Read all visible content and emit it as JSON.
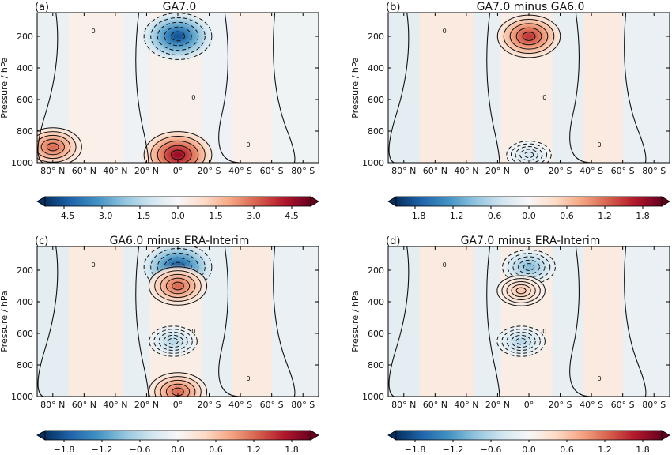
{
  "chart_data": [
    {
      "type": "heatmap",
      "panel_label": "(a)",
      "title": "GA7.0",
      "ylabel": "Pressure / hPa",
      "ylim": [
        1000,
        50
      ],
      "y_ticks": [
        "200",
        "400",
        "600",
        "800",
        "1000"
      ],
      "x_ticks": [
        "80° N",
        "60° N",
        "40° N",
        "20° N",
        "0°",
        "20° S",
        "40° S",
        "60° S",
        "80° S"
      ],
      "colorbar": {
        "range": [
          -5.25,
          5.25
        ],
        "ticks": [
          "−4.5",
          "−3.0",
          "−1.5",
          "0.0",
          "1.5",
          "3.0",
          "4.5"
        ],
        "extend": "both"
      },
      "contour_label": "0",
      "features": [
        {
          "name": "upper-level negative anomaly",
          "lat": 0,
          "pressure": 200,
          "sign": "negative",
          "peak": -4.5
        },
        {
          "name": "near-surface positive anomaly",
          "lat": 0,
          "pressure": 950,
          "sign": "positive",
          "peak": 4.5
        },
        {
          "name": "high-latitude south positive anomaly",
          "lat": 80,
          "pressure": 900,
          "sign": "positive",
          "peak": 3.0
        }
      ]
    },
    {
      "type": "heatmap",
      "panel_label": "(b)",
      "title": "GA7.0 minus GA6.0",
      "ylabel": "Pressure / hPa",
      "ylim": [
        1000,
        50
      ],
      "y_ticks": [
        "200",
        "400",
        "600",
        "800",
        "1000"
      ],
      "x_ticks": [
        "80° N",
        "60° N",
        "40° N",
        "20° N",
        "0°",
        "20° S",
        "40° S",
        "60° S",
        "80° S"
      ],
      "colorbar": {
        "range": [
          -2.1,
          2.1
        ],
        "ticks": [
          "−1.8",
          "−1.2",
          "−0.6",
          "0.0",
          "0.6",
          "1.2",
          "1.8"
        ],
        "extend": "both"
      },
      "contour_label": "0",
      "features": [
        {
          "name": "upper-level positive anomaly",
          "lat": 0,
          "pressure": 200,
          "sign": "positive",
          "peak": 1.5
        },
        {
          "name": "near-surface negative anomaly",
          "lat": 0,
          "pressure": 950,
          "sign": "negative",
          "peak": -0.4
        }
      ]
    },
    {
      "type": "heatmap",
      "panel_label": "(c)",
      "title": "GA6.0 minus ERA-Interim",
      "ylabel": "Pressure / hPa",
      "ylim": [
        1000,
        50
      ],
      "y_ticks": [
        "200",
        "400",
        "600",
        "800",
        "1000"
      ],
      "x_ticks": [
        "80° N",
        "60° N",
        "40° N",
        "20° N",
        "0°",
        "20° S",
        "40° S",
        "60° S",
        "80° S"
      ],
      "colorbar": {
        "range": [
          -2.1,
          2.1
        ],
        "ticks": [
          "−1.8",
          "−1.2",
          "−0.6",
          "0.0",
          "0.6",
          "1.2",
          "1.8"
        ],
        "extend": "both"
      },
      "contour_label": "0",
      "features": [
        {
          "name": "upper-level negative anomaly",
          "lat": 0,
          "pressure": 180,
          "sign": "negative",
          "peak": -1.8
        },
        {
          "name": "upper-level positive anomaly",
          "lat": 0,
          "pressure": 300,
          "sign": "positive",
          "peak": 1.2
        },
        {
          "name": "mid-level negative anomaly",
          "lat": 3,
          "pressure": 650,
          "sign": "negative",
          "peak": -0.6
        },
        {
          "name": "near-surface positive anomaly",
          "lat": 0,
          "pressure": 970,
          "sign": "positive",
          "peak": 1.2
        }
      ]
    },
    {
      "type": "heatmap",
      "panel_label": "(d)",
      "title": "GA7.0 minus ERA-Interim",
      "ylabel": "Pressure / hPa",
      "ylim": [
        1000,
        50
      ],
      "y_ticks": [
        "200",
        "400",
        "600",
        "800",
        "1000"
      ],
      "x_ticks": [
        "80° N",
        "60° N",
        "40° N",
        "20° N",
        "0°",
        "20° S",
        "40° S",
        "60° S",
        "80° S"
      ],
      "colorbar": {
        "range": [
          -2.1,
          2.1
        ],
        "ticks": [
          "−1.8",
          "−1.2",
          "−0.6",
          "0.0",
          "0.6",
          "1.2",
          "1.8"
        ],
        "extend": "both"
      },
      "contour_label": "0",
      "features": [
        {
          "name": "upper-level negative anomaly",
          "lat": 0,
          "pressure": 180,
          "sign": "negative",
          "peak": -0.9
        },
        {
          "name": "mid-upper positive anomaly",
          "lat": 5,
          "pressure": 330,
          "sign": "positive",
          "peak": 0.6
        },
        {
          "name": "mid-level negative anomaly",
          "lat": 5,
          "pressure": 650,
          "sign": "negative",
          "peak": -0.6
        }
      ]
    }
  ],
  "colors": {
    "colormap": "RdBu_r",
    "stops": [
      "#053061",
      "#2166ac",
      "#4393c3",
      "#92c5de",
      "#d1e5f0",
      "#f7f7f7",
      "#fddbc7",
      "#f4a582",
      "#d6604d",
      "#b2182b",
      "#67001f"
    ],
    "contour_line": "#111111"
  }
}
